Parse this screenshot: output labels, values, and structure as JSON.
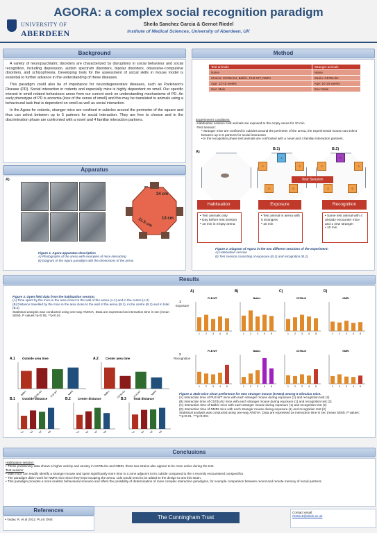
{
  "header": {
    "title": "AGORA: a complex social recognition paradigm",
    "authors": "Sheila Sanchez Garcia & Gernot Riedel",
    "institution": "Institute of Medical Sciences, University of Aberdeen, UK",
    "logo_line1": "UNIVERSITY OF",
    "logo_line2": "ABERDEEN"
  },
  "background": {
    "heading": "Background",
    "p1": "A variety of neuropsychiatric disorders are characterized by disruptions in social behaviour and social recognition, including depression, autism spectrum disorders, bipolar disorders, obsessive-compulsive disorders, and schizophrenia. Developing tools for the assessment of social skills in mouse model is essential to further advance in the understanding of these diseases.",
    "p2": "This paradigm could also be of importance for neurodegenerative diseases, such as Parkinson's Disease (PD). Social interaction in rodents and especially mice is highly dependent on smell. Our specific interest in smell related behaviours arose from our current work on understanding mechanisms of PD. An early phenotype of PD is anosmia (loss of the sense of smell) and this may be translated to animals using a behavioural task that is dependent on smell as well as social interaction.",
    "p3": "In the Agora for rodents, stranger mice are confined in cubicles around the perimeter of the square and thus can select between up to 5 partners for social interaction. They are free to choose and in the discrimination phase are confronted with a novel and 4 familiar interaction partners."
  },
  "method": {
    "heading": "Method",
    "table": [
      [
        "Test animals",
        "Stranger animals"
      ],
      [
        "Naïve",
        "Naïve"
      ],
      [
        "Strains: C57BL/6J, Balb/c, PLB WT, NMRI",
        "Strain: C57BL/6J"
      ],
      [
        "Age: 12-15 weeks",
        "Age: 10-15 weeks"
      ],
      [
        "Sex: Male",
        "Sex: Male"
      ]
    ],
    "conditions_title": "Experiment's conditions:",
    "conditions_hab": "-Habituation session: test animals are exposed to the empty arena for 10 min",
    "conditions_test": "-Test Session:",
    "bullet1": "Stranger mice are confined in cubicles around the perimeter of the arena, the experimental mouse can select between up to 5 partners for social interaction",
    "bullet2": "In the recognition phase test animals are confronted with a novel and 4 familiar interaction partners.",
    "diag_a": "A)",
    "diag_b1": "B.1)",
    "diag_b2": "B.2)",
    "test_session": "Test Session",
    "stages": [
      "Habituation",
      "Exposure",
      "Recognition"
    ],
    "stage_hab": [
      "Test animals only",
      "Day before test session",
      "10 min in empty arena"
    ],
    "stage_exp": [
      "Test animal in arena with 5 strangers",
      "10 min"
    ],
    "stage_rec": [
      "Same test animal with 4 already encounter mice and 1 new stranger",
      "10 min"
    ],
    "fig2_title": "Figure 2. Diagram of Agora in the two different sessions of the experiment:",
    "fig2_a": "A)  Habituation session",
    "fig2_b": "B)  Test session consisting of exposure (B.1) and recognition (B.2)"
  },
  "apparatus": {
    "heading": "Apparatus",
    "label_a": "A)",
    "label_b": "B)",
    "dim1": "34 cm",
    "dim2": "13 cm",
    "dim3": "11.5 cm",
    "fig1_title": "Figure 1. Agora apparatus description",
    "fig1_a": "A)  Photographs of the arena with examples of mice interacting",
    "fig1_b": "B)  Diagram of the Agora paradigm with the dimensions of the arena"
  },
  "results": {
    "heading": "Results",
    "fig3_title": "Figure 3. Open field data from the habituation session.",
    "fig3_a": "(A) Time spent by the mice in the area closer to the wall of the arena (A.1) and in the centre (A.2)",
    "fig3_b": "(B) Distance travelled by the mice in the area close to the wall of the arena (B.1), in the centre (B.2) and in total (B.3)",
    "fig3_stats": "Statistical analysis was conducted using one-way ANOVA. Data are expressed as interaction time in sec (mean SEM). P values:*p<0.05, **p<0.01",
    "fig4_title": "Figure 4. Male mice show preference for new stranger mouse (5 New) among 5 stimulus mice.",
    "fig4_a": "(A) Interaction time of PLB WT mice with each stranger mouse during exposure (1) and recognition test (2)",
    "fig4_b": "(B) Interaction time of C57BL/6J mice with each stranger mouse during exposure (1) and recognition test (2)",
    "fig4_c": "(C) Interaction time of Balb/c mice with each stranger mouse during exposure (1) and recognition test (2)",
    "fig4_d": "(D) Interaction time of NMRI mice with each stranger mouse during exposure (1) and recognition test (2)",
    "fig4_stats": "Statistical analysis was conducted using one-way ANOVA. Data are expressed as interaction time in sec (mean SEM). P values: **p<0.01, ***p<0.001",
    "row1": "1",
    "row1_label": "Exposure",
    "row2": "2",
    "row2_label": "Recognition",
    "col_labels": [
      "A)",
      "B)",
      "C)",
      "D)"
    ],
    "col_titles": [
      "PLB WT",
      "Balb/c",
      "C57BL/6",
      "NMRI"
    ]
  },
  "chart_data": [
    {
      "type": "bar",
      "title": "Outside area time",
      "label": "A.1",
      "categories": [
        "Balb/c",
        "C57BL/6J",
        "PLB WT",
        "NMRI"
      ],
      "values": [
        430,
        500,
        470,
        510
      ],
      "colors": [
        "#b03020",
        "#8b1a1a",
        "#2f6b2f",
        "#1f4f7a"
      ]
    },
    {
      "type": "bar",
      "title": "Center area time",
      "label": "A.2",
      "categories": [
        "Balb/c",
        "C57BL/6J",
        "PLB WT",
        "NMRI"
      ],
      "values": [
        150,
        90,
        120,
        80
      ],
      "colors": [
        "#b03020",
        "#8b1a1a",
        "#2f6b2f",
        "#1f4f7a"
      ]
    },
    {
      "type": "bar",
      "title": "Outside distance",
      "label": "B.1",
      "categories": [
        "Balb/c",
        "C57BL/6J",
        "PLB WT",
        "NMRI"
      ],
      "values": [
        20,
        28,
        26,
        32
      ],
      "colors": [
        "#b03020",
        "#8b1a1a",
        "#2f6b2f",
        "#1f4f7a"
      ]
    },
    {
      "type": "bar",
      "title": "Center distance",
      "label": "B.2",
      "categories": [
        "Balb/c",
        "C57BL/6J",
        "PLB WT",
        "NMRI"
      ],
      "values": [
        8,
        10,
        12,
        9
      ],
      "colors": [
        "#b03020",
        "#8b1a1a",
        "#2f6b2f",
        "#1f4f7a"
      ]
    },
    {
      "type": "bar",
      "title": "Total distance",
      "label": "B.3",
      "categories": [
        "Balb/c",
        "C57BL/6J",
        "PLB WT",
        "NMRI"
      ],
      "values": [
        28,
        37,
        38,
        41
      ],
      "colors": [
        "#b03020",
        "#8b1a1a",
        "#2f6b2f",
        "#1f4f7a"
      ]
    }
  ],
  "fig4_data": {
    "categories": [
      "1",
      "2",
      "3",
      "4",
      "5"
    ],
    "exposure": [
      [
        80,
        95,
        70,
        85,
        75
      ],
      [
        90,
        120,
        85,
        95,
        88
      ],
      [
        70,
        80,
        95,
        85,
        75
      ],
      [
        55,
        50,
        60,
        48,
        52
      ]
    ],
    "recognition": [
      [
        70,
        60,
        55,
        65,
        110
      ],
      [
        40,
        60,
        80,
        150,
        90
      ],
      [
        50,
        45,
        55,
        48,
        85
      ],
      [
        45,
        55,
        42,
        40,
        48
      ]
    ],
    "colors": [
      "#e08a2c",
      "#e08a2c",
      "#e08a2c",
      "#e08a2c"
    ],
    "highlight": [
      "#c0392b",
      "#a020c0",
      "#c0392b",
      "#c0392b"
    ]
  },
  "conclusions": {
    "heading": "Conclusions",
    "hab_title": "Habituation session:",
    "hab_1": "These preliminary data shows a higher activity and anxiety in C57BL/6J and NMRI, these two strains also appear to be more active during the test.",
    "test_title": "Test session:",
    "test_1": "Male mice can readily identify a stranger mouse and spent significantly more time in a zone adjacent to its cubicle compared to the 4 recently encountered conspecifics",
    "test_2": "The paradigm didn't work for NMRI mice since they kept escaping the arena. Lids would need to be added to the design to test this strain.",
    "test_3": "This paradigm provides a more realistic behavioural scenario and offers the possibility of determination of more complex interaction paradigms, for example comparison between recent and remote memory of social partners."
  },
  "footer": {
    "references_heading": "References",
    "reference": "Yadav, R. et al 2012, PLoS ONE",
    "trust": "The Cunningham Trust",
    "contact_label": "Contact email:",
    "contact_email": "r03ss18@abdn.ac.uk"
  }
}
